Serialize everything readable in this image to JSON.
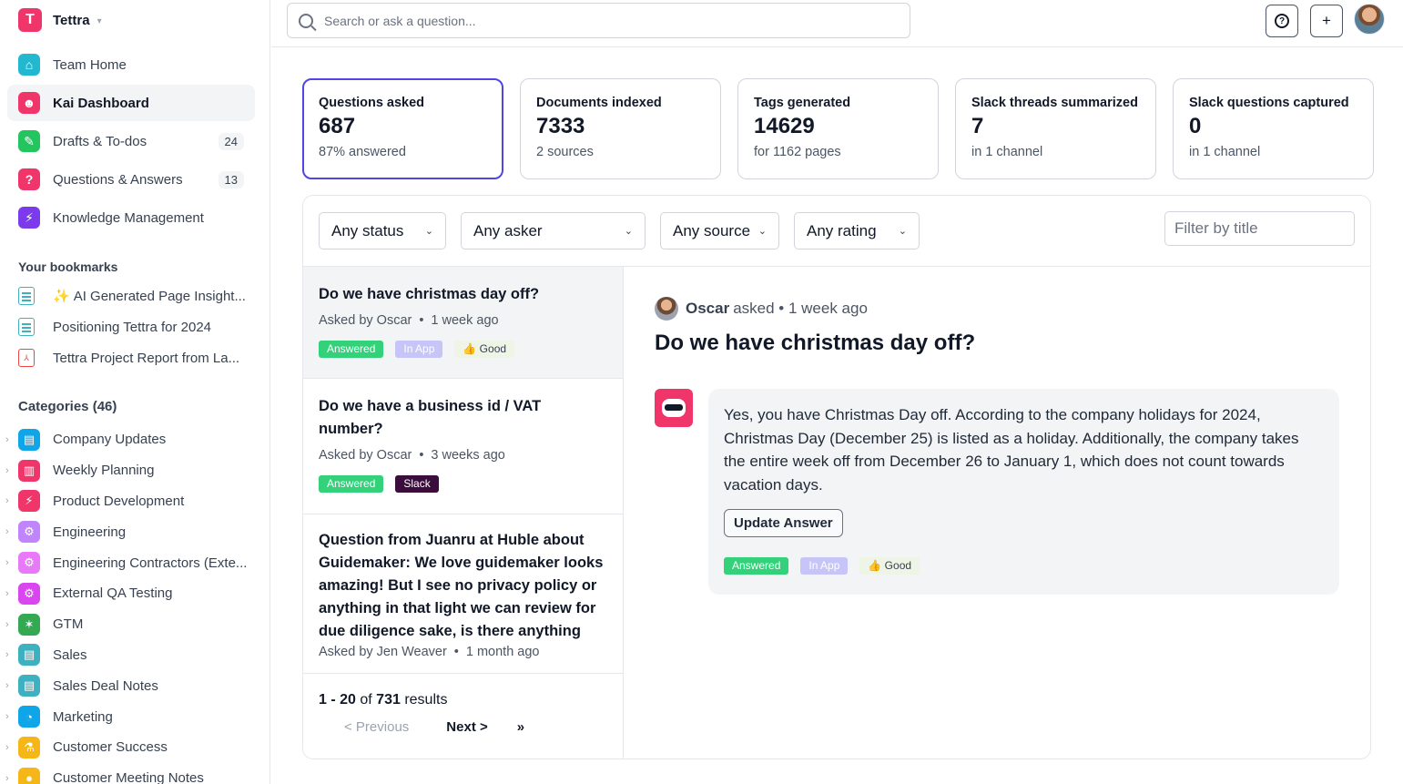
{
  "brand": {
    "name": "Tettra"
  },
  "nav": [
    {
      "label": "Team Home",
      "badge": "",
      "color": "#22b8cf",
      "glyph": "⌂"
    },
    {
      "label": "Kai Dashboard",
      "badge": "",
      "color": "#f0356b",
      "glyph": "☻"
    },
    {
      "label": "Drafts & To-dos",
      "badge": "24",
      "color": "#22c55e",
      "glyph": "✎"
    },
    {
      "label": "Questions & Answers",
      "badge": "13",
      "color": "#f0356b",
      "glyph": "?"
    },
    {
      "label": "Knowledge Management",
      "badge": "",
      "color": "#7c3aed",
      "glyph": "⚡"
    }
  ],
  "bookmarks": {
    "title": "Your bookmarks",
    "items": [
      {
        "label": "AI Generated Page Insight...",
        "sparkle": "✨",
        "type": "doc"
      },
      {
        "label": "Positioning Tettra for 2024",
        "sparkle": "",
        "type": "doc"
      },
      {
        "label": "Tettra Project Report from La...",
        "sparkle": "",
        "type": "pdf"
      }
    ]
  },
  "categories": {
    "title": "Categories (46)",
    "items": [
      {
        "label": "Company Updates",
        "color": "#0ea5e9",
        "glyph": "▤"
      },
      {
        "label": "Weekly Planning",
        "color": "#f0356b",
        "glyph": "▥"
      },
      {
        "label": "Product Development",
        "color": "#f0356b",
        "glyph": "⚡"
      },
      {
        "label": "Engineering",
        "color": "#c084fc",
        "glyph": "⚙"
      },
      {
        "label": "Engineering Contractors (Exte...",
        "color": "#e879f9",
        "glyph": "⚙"
      },
      {
        "label": "External QA Testing",
        "color": "#d946ef",
        "glyph": "⚙"
      },
      {
        "label": "GTM",
        "color": "#34a853",
        "glyph": "✶"
      },
      {
        "label": "Sales",
        "color": "#3db1c0",
        "glyph": "▤"
      },
      {
        "label": "Sales Deal Notes",
        "color": "#3db1c0",
        "glyph": "▤"
      },
      {
        "label": "Marketing",
        "color": "#0ea5e9",
        "glyph": "◔"
      },
      {
        "label": "Customer Success",
        "color": "#f5b718",
        "glyph": "⚗"
      },
      {
        "label": "Customer Meeting Notes",
        "color": "#f5b718",
        "glyph": "●"
      }
    ]
  },
  "search": {
    "placeholder": "Search or ask a question..."
  },
  "top_buttons": {
    "help": "?",
    "add": "+"
  },
  "stats": [
    {
      "label": "Questions asked",
      "value": "687",
      "sub": "87% answered"
    },
    {
      "label": "Documents indexed",
      "value": "7333",
      "sub": "2 sources"
    },
    {
      "label": "Tags generated",
      "value": "14629",
      "sub": "for 1162 pages"
    },
    {
      "label": "Slack threads summarized",
      "value": "7",
      "sub": "in 1 channel"
    },
    {
      "label": "Slack questions captured",
      "value": "0",
      "sub": "in 1 channel"
    }
  ],
  "filters": {
    "status": "Any status",
    "asker": "Any asker",
    "source": "Any source",
    "rating": "Any rating",
    "title_placeholder": "Filter by title"
  },
  "questions": [
    {
      "title": "Do we have christmas day off?",
      "asker": "Asked by Oscar",
      "time": "1 week ago",
      "tags": {
        "status": "Answered",
        "source": "In App",
        "rating": "👍 Good"
      }
    },
    {
      "title": "Do we have a business id / VAT number?",
      "asker": "Asked by Oscar",
      "time": "3 weeks ago",
      "tags": {
        "status": "Answered",
        "source": "Slack"
      }
    },
    {
      "title": "Question from Juanru at Huble about Guidemaker: We love guidemaker looks amazing! But I see no privacy policy or anything in that light we can review for due diligence sake, is there anything",
      "asker": "Asked by Jen Weaver",
      "time": "1 month ago"
    }
  ],
  "pager": {
    "range": "1 - 20",
    "of": "of",
    "total": "731",
    "results": "results",
    "prev": "< Previous",
    "next": "Next >",
    "last": "»"
  },
  "detail": {
    "asker_name": "Oscar",
    "asked_text": "asked • 1 week ago",
    "title": "Do we have christmas day off?",
    "answer": "Yes, you have Christmas Day off. According to the company holidays for 2024, Christmas Day (December 25) is listed as a holiday. Additionally, the company takes the entire week off from December 26 to January 1, which does not count towards vacation days.",
    "update_label": "Update Answer",
    "tags": {
      "status": "Answered",
      "source": "In App",
      "rating": "👍 Good"
    }
  }
}
